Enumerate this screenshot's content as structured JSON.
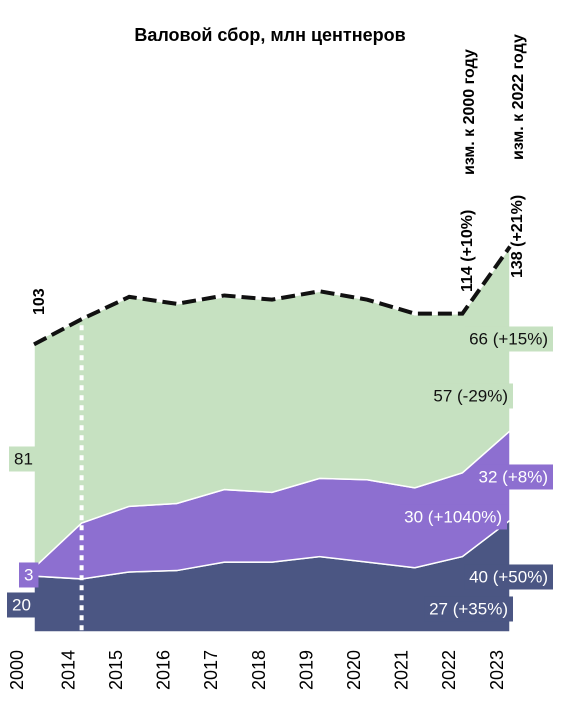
{
  "chart_data": {
    "type": "stacked_area",
    "title": "Валовой сбор, млн центнеров",
    "annotations": [
      "изм. к 2000 году",
      "изм. к 2022 году"
    ],
    "categories": [
      "2000",
      "2014",
      "2015",
      "2016",
      "2017",
      "2018",
      "2019",
      "2020",
      "2021",
      "2022",
      "2023"
    ],
    "ylim": [
      0,
      140
    ],
    "series": [
      {
        "color": "#4b5683",
        "values": [
          20,
          19,
          21.5,
          22,
          25,
          25,
          27,
          25,
          23,
          27,
          40
        ],
        "value_labels": [
          "20",
          null,
          null,
          null,
          null,
          null,
          null,
          null,
          null,
          "27 (+35%)",
          "40 (+50%)"
        ]
      },
      {
        "color": "#8d6fd0",
        "values": [
          3,
          20,
          23.5,
          24,
          26,
          25,
          28,
          29.5,
          28.6,
          30,
          32
        ],
        "value_labels": [
          "3",
          null,
          null,
          null,
          null,
          null,
          null,
          null,
          null,
          "30 (+1040%)",
          "32 (+8%)"
        ]
      },
      {
        "color": "#c6e1c1",
        "values": [
          81,
          73,
          75,
          71.5,
          69,
          69,
          67,
          64.5,
          62,
          57,
          66
        ],
        "value_labels": [
          "81",
          null,
          null,
          null,
          null,
          null,
          null,
          null,
          null,
          "57 (-29%)",
          "66 (+15%)"
        ]
      }
    ],
    "total": {
      "color": "#111111",
      "values": [
        103,
        112,
        120,
        117.5,
        120.5,
        119,
        122,
        119,
        114,
        114,
        138
      ],
      "value_labels": [
        "103",
        null,
        null,
        null,
        null,
        null,
        null,
        null,
        null,
        "114 (+10%)",
        "138 (+21%)"
      ]
    }
  }
}
